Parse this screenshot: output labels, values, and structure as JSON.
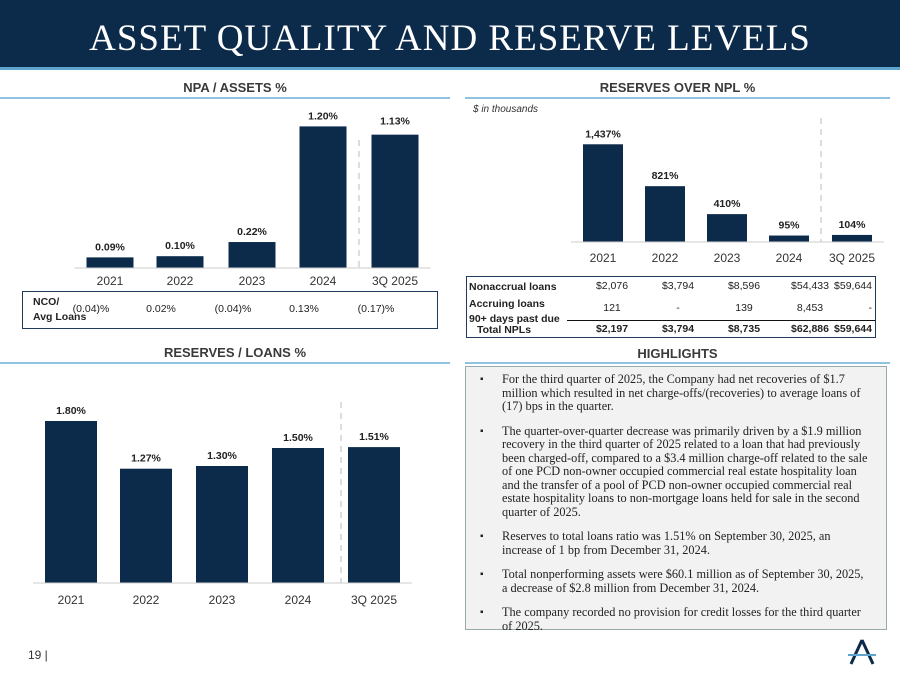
{
  "title": "ASSET QUALITY AND RESERVE LEVELS",
  "page_number": "19 |",
  "colors": {
    "bar": "#0c2b4b",
    "header": "#0c2b4b",
    "accent": "#8fc3e0"
  },
  "chart_data": [
    {
      "type": "bar",
      "title": "NPA / ASSETS %",
      "categories": [
        "2021",
        "2022",
        "2023",
        "2024",
        "3Q 2025"
      ],
      "values": [
        0.09,
        0.1,
        0.22,
        1.2,
        1.13
      ],
      "labels": [
        "0.09%",
        "0.10%",
        "0.22%",
        "1.20%",
        "1.13%"
      ],
      "grid": false
    },
    {
      "type": "bar",
      "title": "RESERVES OVER NPL %",
      "subtitle": "$ in thousands",
      "categories": [
        "2021",
        "2022",
        "2023",
        "2024",
        "3Q 2025"
      ],
      "values": [
        1437,
        821,
        410,
        95,
        104
      ],
      "labels": [
        "1,437%",
        "821%",
        "410%",
        "95%",
        "104%"
      ],
      "grid": false
    },
    {
      "type": "bar",
      "title": "RESERVES / LOANS %",
      "categories": [
        "2021",
        "2022",
        "2023",
        "2024",
        "3Q 2025"
      ],
      "values": [
        1.8,
        1.27,
        1.3,
        1.5,
        1.51
      ],
      "labels": [
        "1.80%",
        "1.27%",
        "1.30%",
        "1.50%",
        "1.51%"
      ],
      "grid": false
    }
  ],
  "nco": {
    "label1": "NCO/",
    "label2": "Avg Loans",
    "values": [
      "(0.04)%",
      "0.02%",
      "(0.04)%",
      "0.13%",
      "(0.17)%"
    ]
  },
  "npl_table": {
    "rows": [
      {
        "label": "Nonaccrual loans",
        "values": [
          "$2,076",
          "$3,794",
          "$8,596",
          "$54,433",
          "$59,644"
        ]
      },
      {
        "label": "Accruing loans",
        "label2": "90+ days past due",
        "values": [
          "121",
          "-",
          "139",
          "8,453",
          "-"
        ]
      },
      {
        "label": "Total NPLs",
        "values": [
          "$2,197",
          "$3,794",
          "$8,735",
          "$62,886",
          "$59,644"
        ]
      }
    ]
  },
  "highlights": {
    "title": "HIGHLIGHTS",
    "items": [
      "For the third quarter of 2025, the Company had net recoveries of $1.7 million which resulted in net charge-offs/(recoveries) to average loans of (17) bps in the quarter.",
      "The quarter-over-quarter decrease was primarily driven by a $1.9 million recovery in the third quarter of 2025 related to a loan that had previously been charged-off, compared to a $3.4 million charge-off related to the sale of one PCD non-owner occupied commercial real estate hospitality loan and the transfer of a pool of PCD non-owner occupied commercial real estate hospitality loans to non-mortgage loans held for sale in the second quarter of 2025.",
      "Reserves to total loans ratio was 1.51% on September 30, 2025, an increase of 1 bp from December 31, 2024.",
      "Total nonperforming assets were $60.1 million as of September 30, 2025, a decrease of $2.8 million from December 31, 2024.",
      "The company recorded no provision for credit losses for the third quarter of 2025."
    ]
  }
}
